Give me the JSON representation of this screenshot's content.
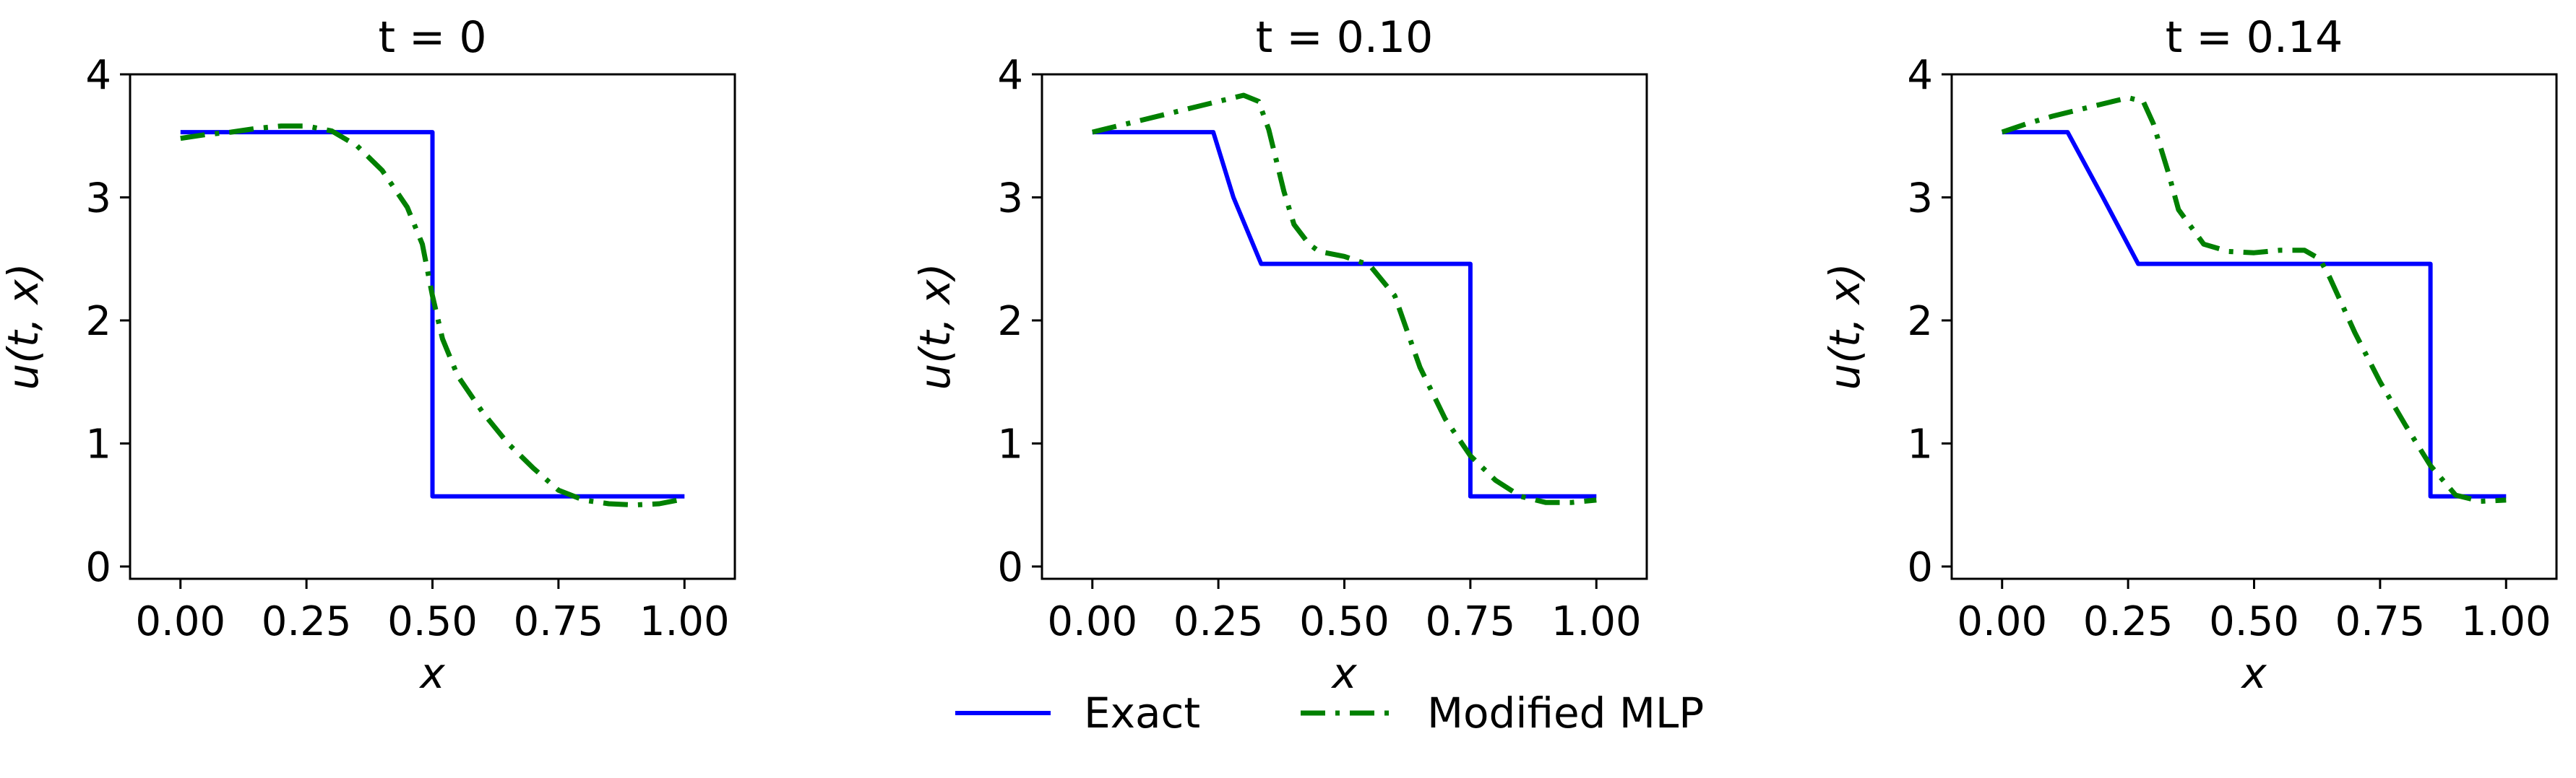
{
  "chart_data": [
    {
      "type": "line",
      "title": "t = 0",
      "xlabel": "x",
      "ylabel": "u(t, x)",
      "xlim": [
        -0.1,
        1.1
      ],
      "ylim": [
        -0.1,
        4.0
      ],
      "xticks": [
        "0.00",
        "0.25",
        "0.50",
        "0.75",
        "1.00"
      ],
      "yticks": [
        "0",
        "1",
        "2",
        "3",
        "4"
      ],
      "series": [
        {
          "name": "Exact",
          "color": "#0000ff",
          "style": "solid",
          "x": [
            0.0,
            0.5,
            0.5,
            1.0
          ],
          "y": [
            3.53,
            3.53,
            0.57,
            0.57
          ]
        },
        {
          "name": "Modified MLP",
          "color": "#008000",
          "style": "dashdot",
          "x": [
            0.0,
            0.05,
            0.1,
            0.15,
            0.2,
            0.25,
            0.3,
            0.35,
            0.4,
            0.45,
            0.48,
            0.5,
            0.52,
            0.55,
            0.6,
            0.65,
            0.7,
            0.75,
            0.8,
            0.85,
            0.9,
            0.95,
            1.0
          ],
          "y": [
            3.48,
            3.51,
            3.53,
            3.56,
            3.58,
            3.58,
            3.54,
            3.42,
            3.22,
            2.92,
            2.62,
            2.2,
            1.85,
            1.55,
            1.25,
            1.0,
            0.8,
            0.62,
            0.54,
            0.51,
            0.5,
            0.51,
            0.55
          ]
        }
      ]
    },
    {
      "type": "line",
      "title": "t = 0.10",
      "xlabel": "x",
      "ylabel": "u(t, x)",
      "xlim": [
        -0.1,
        1.1
      ],
      "ylim": [
        -0.1,
        4.0
      ],
      "xticks": [
        "0.00",
        "0.25",
        "0.50",
        "0.75",
        "1.00"
      ],
      "yticks": [
        "0",
        "1",
        "2",
        "3",
        "4"
      ],
      "series": [
        {
          "name": "Exact",
          "color": "#0000ff",
          "style": "solid",
          "x": [
            0.0,
            0.24,
            0.28,
            0.335,
            0.75,
            0.75,
            1.0
          ],
          "y": [
            3.53,
            3.53,
            3.0,
            2.46,
            2.46,
            0.57,
            0.57
          ]
        },
        {
          "name": "Modified MLP",
          "color": "#008000",
          "style": "dashdot",
          "x": [
            0.0,
            0.05,
            0.1,
            0.15,
            0.2,
            0.25,
            0.3,
            0.33,
            0.35,
            0.38,
            0.4,
            0.43,
            0.45,
            0.5,
            0.55,
            0.6,
            0.63,
            0.65,
            0.7,
            0.75,
            0.8,
            0.85,
            0.9,
            0.95,
            1.0
          ],
          "y": [
            3.53,
            3.58,
            3.63,
            3.68,
            3.73,
            3.78,
            3.83,
            3.78,
            3.55,
            3.05,
            2.78,
            2.62,
            2.56,
            2.52,
            2.45,
            2.2,
            1.85,
            1.62,
            1.2,
            0.9,
            0.7,
            0.57,
            0.52,
            0.52,
            0.54
          ]
        }
      ]
    },
    {
      "type": "line",
      "title": "t = 0.14",
      "xlabel": "x",
      "ylabel": "u(t, x)",
      "xlim": [
        -0.1,
        1.1
      ],
      "ylim": [
        -0.1,
        4.0
      ],
      "xticks": [
        "0.00",
        "0.25",
        "0.50",
        "0.75",
        "1.00"
      ],
      "yticks": [
        "0",
        "1",
        "2",
        "3",
        "4"
      ],
      "series": [
        {
          "name": "Exact",
          "color": "#0000ff",
          "style": "solid",
          "x": [
            0.0,
            0.13,
            0.2,
            0.27,
            0.85,
            0.85,
            1.0
          ],
          "y": [
            3.53,
            3.53,
            3.0,
            2.46,
            2.46,
            0.57,
            0.57
          ]
        },
        {
          "name": "Modified MLP",
          "color": "#008000",
          "style": "dashdot",
          "x": [
            0.0,
            0.05,
            0.1,
            0.15,
            0.2,
            0.25,
            0.28,
            0.3,
            0.33,
            0.35,
            0.4,
            0.45,
            0.5,
            0.55,
            0.6,
            0.63,
            0.65,
            0.7,
            0.75,
            0.8,
            0.85,
            0.9,
            0.95,
            1.0
          ],
          "y": [
            3.53,
            3.6,
            3.66,
            3.71,
            3.76,
            3.81,
            3.78,
            3.6,
            3.2,
            2.9,
            2.62,
            2.56,
            2.55,
            2.57,
            2.57,
            2.5,
            2.35,
            1.9,
            1.5,
            1.15,
            0.82,
            0.58,
            0.53,
            0.54
          ]
        }
      ]
    }
  ],
  "legend": {
    "placement": "bottom-center",
    "entries": [
      {
        "label": "Exact",
        "color": "#0000ff",
        "style": "solid"
      },
      {
        "label": "Modified MLP",
        "color": "#008000",
        "style": "dashdot"
      }
    ]
  }
}
